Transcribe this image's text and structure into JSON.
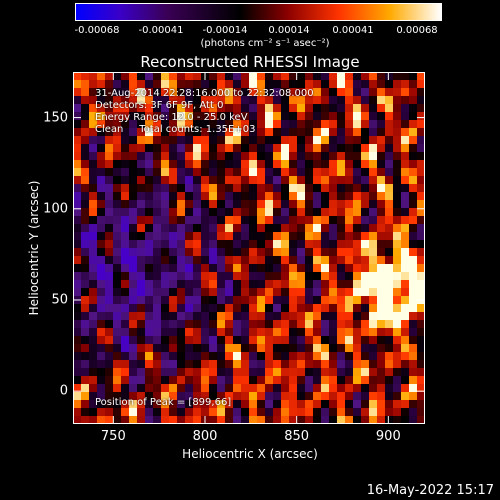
{
  "chart_data": {
    "type": "heatmap",
    "title": "Reconstructed RHESSI Image",
    "xlabel": "Heliocentric X (arcsec)",
    "ylabel": "Heliocentric Y (arcsec)",
    "xlim": [
      728,
      920
    ],
    "ylim": [
      -18,
      175
    ],
    "x_ticks": [
      "750",
      "800",
      "850",
      "900"
    ],
    "y_ticks": [
      "0",
      "50",
      "100",
      "150"
    ],
    "x_tick_values": [
      750,
      800,
      850,
      900
    ],
    "y_tick_values": [
      0,
      50,
      100,
      150
    ],
    "peak": [
      899,
      66
    ],
    "colorbar": {
      "tick_labels": [
        "-0.00068",
        "-0.00041",
        "-0.00014",
        "0.00014",
        "0.00041",
        "0.00068"
      ],
      "unit_label": "(photons cm⁻² s⁻¹ asec⁻²)",
      "range": [
        -0.00068,
        0.00068
      ]
    },
    "annotations": {
      "time_range": "31-Aug-2014 22:28:16.000 to 22:32:08.000",
      "detectors": "Detectors: 3F 6F 9F, Att 0",
      "energy": "Energy Range: 12.0 - 25.0 keV",
      "clean": "Clean     Total counts: 1.35E+03",
      "peak_text": "Position of Peak = [899,66]"
    }
  },
  "footer_date": "16-May-2022 15:17"
}
